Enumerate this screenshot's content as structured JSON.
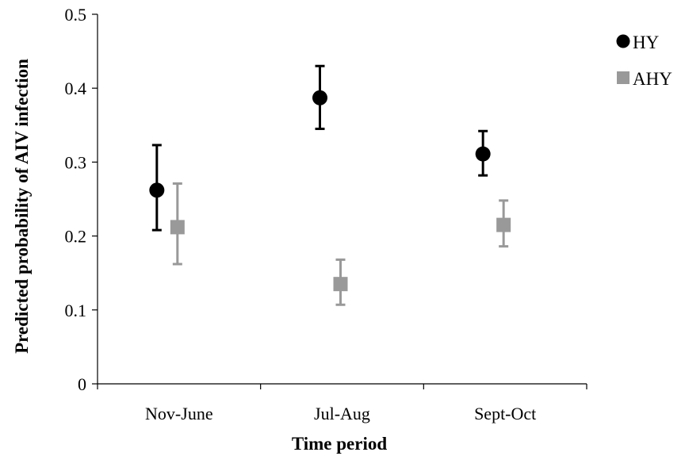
{
  "chart_data": {
    "type": "scatter",
    "title": "",
    "xlabel": "Time period",
    "ylabel": "Predicted probability of AIV infection",
    "categories": [
      "Nov-June",
      "Jul-Aug",
      "Sept-Oct"
    ],
    "ylim": [
      0,
      0.5
    ],
    "yticks": [
      "0",
      "0.1",
      "0.2",
      "0.3",
      "0.4",
      "0.5"
    ],
    "grid": false,
    "legend_position": "top-right",
    "series": [
      {
        "name": "HY",
        "marker": "circle",
        "color": "#000000",
        "values": [
          0.262,
          0.387,
          0.311
        ],
        "lower": [
          0.208,
          0.345,
          0.282
        ],
        "upper": [
          0.323,
          0.43,
          0.342
        ]
      },
      {
        "name": "AHY",
        "marker": "square",
        "color": "#999999",
        "values": [
          0.212,
          0.135,
          0.215
        ],
        "lower": [
          0.162,
          0.107,
          0.186
        ],
        "upper": [
          0.271,
          0.168,
          0.248
        ]
      }
    ]
  }
}
